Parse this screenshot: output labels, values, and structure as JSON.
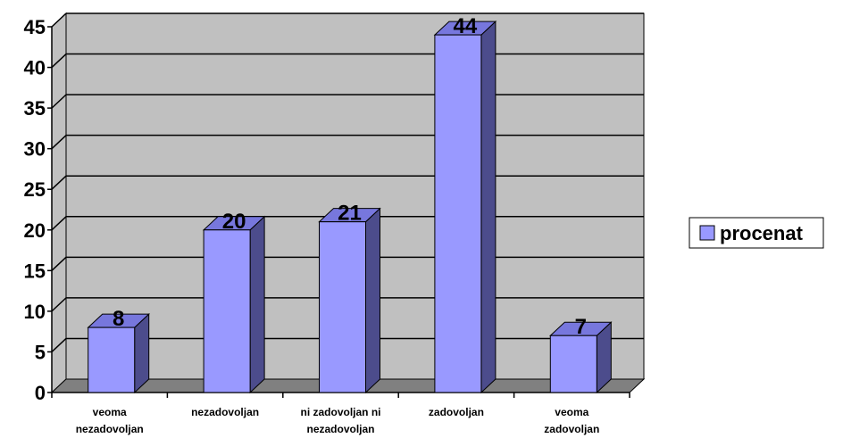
{
  "chart_data": {
    "type": "bar",
    "categories": [
      [
        "veoma",
        "nezadovoljan"
      ],
      [
        "nezadovoljan"
      ],
      [
        "ni zadovoljan ni",
        "nezadovoljan"
      ],
      [
        "zadovoljan"
      ],
      [
        "veoma",
        "zadovoljan"
      ]
    ],
    "series": [
      {
        "name": "procenat",
        "values": [
          8,
          20,
          21,
          44,
          7
        ]
      }
    ],
    "data_labels": [
      "8",
      "20",
      "21",
      "44",
      "7"
    ],
    "title": "",
    "xlabel": "",
    "ylabel": "",
    "ylim": [
      0,
      45
    ],
    "yticks": [
      "0",
      "5",
      "10",
      "15",
      "20",
      "25",
      "30",
      "35",
      "40",
      "45"
    ],
    "grid": true,
    "legend_position": "right",
    "style": "3d-bar",
    "colors": {
      "bar_front": "#9999ff",
      "bar_top": "#7777dd",
      "bar_side": "#4c4c8c",
      "wall": "#c0c0c0",
      "floor": "#808080",
      "gridline": "#000000",
      "edge": "#000000"
    }
  }
}
